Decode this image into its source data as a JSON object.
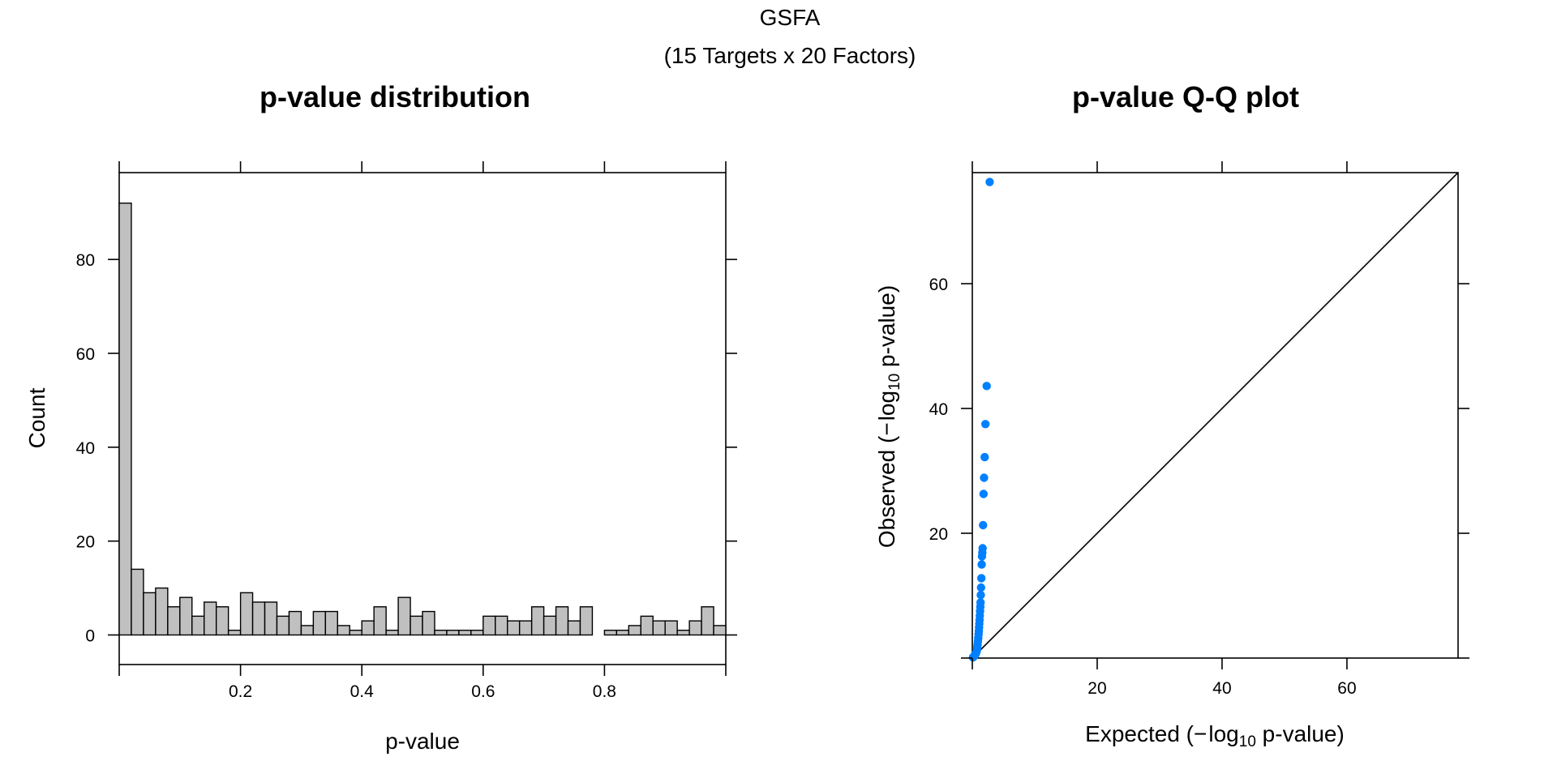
{
  "figure": {
    "title": "GSFA",
    "subtitle": "(15 Targets x 20 Factors)"
  },
  "chart_data": [
    {
      "type": "bar",
      "subtype": "histogram",
      "title": "p-value distribution",
      "xlabel": "p-value",
      "ylabel": "Count",
      "xlim": [
        0,
        1
      ],
      "ylim": [
        -6.3,
        98.5
      ],
      "bin_width": 0.02,
      "bin_starts": [
        0.0,
        0.02,
        0.04,
        0.06,
        0.08,
        0.1,
        0.12,
        0.14,
        0.16,
        0.18,
        0.2,
        0.22,
        0.24,
        0.26,
        0.28,
        0.3,
        0.32,
        0.34,
        0.36,
        0.38,
        0.4,
        0.42,
        0.44,
        0.46,
        0.48,
        0.5,
        0.52,
        0.54,
        0.56,
        0.58,
        0.6,
        0.62,
        0.64,
        0.66,
        0.68,
        0.7,
        0.72,
        0.74,
        0.76,
        0.78,
        0.8,
        0.82,
        0.84,
        0.86,
        0.88,
        0.9,
        0.92,
        0.94,
        0.96,
        0.98
      ],
      "values": [
        92,
        14,
        9,
        10,
        6,
        8,
        4,
        7,
        6,
        1,
        9,
        7,
        7,
        4,
        5,
        2,
        5,
        5,
        2,
        1,
        3,
        6,
        1,
        8,
        4,
        5,
        1,
        1,
        1,
        1,
        4,
        4,
        3,
        3,
        6,
        4,
        6,
        3,
        6,
        0,
        1,
        1,
        2,
        4,
        3,
        3,
        1,
        3,
        6,
        2
      ],
      "x_ticks": [
        "0.2",
        "0.4",
        "0.6",
        "0.8"
      ],
      "x_tick_values": [
        0.2,
        0.4,
        0.6,
        0.8
      ],
      "y_ticks": [
        "0",
        "20",
        "40",
        "60",
        "80"
      ],
      "y_tick_values": [
        0,
        20,
        40,
        60,
        80
      ],
      "color": "#c0c0c0"
    },
    {
      "type": "scatter",
      "subtype": "qq",
      "title": "p-value Q-Q plot",
      "xlabel_prefix": "Expected (",
      "xlabel_minus": "−",
      "xlabel_log": "log",
      "xlabel_base": "10",
      "xlabel_suffix": " p-value)",
      "ylabel_prefix": "Observed (",
      "ylabel_minus": "−",
      "ylabel_log": "log",
      "ylabel_base": "10",
      "ylabel_suffix": " p-value)",
      "xlim": [
        0,
        77.8
      ],
      "ylim": [
        0,
        77.8
      ],
      "x_ticks": [
        "20",
        "40",
        "60"
      ],
      "x_tick_values": [
        20,
        40,
        60
      ],
      "y_ticks": [
        "20",
        "40",
        "60"
      ],
      "y_tick_values": [
        20,
        40,
        60
      ],
      "reference_line": "y = x",
      "color": "#0080ff",
      "points": [
        [
          2.78,
          76.3
        ],
        [
          2.3,
          43.6
        ],
        [
          2.1,
          37.5
        ],
        [
          1.98,
          32.2
        ],
        [
          1.88,
          28.9
        ],
        [
          1.8,
          26.3
        ],
        [
          1.72,
          21.3
        ],
        [
          1.65,
          17.6
        ],
        [
          1.6,
          16.9
        ],
        [
          1.55,
          16.3
        ],
        [
          1.5,
          15.0
        ],
        [
          1.45,
          12.8
        ],
        [
          1.4,
          11.3
        ],
        [
          1.36,
          10.1
        ],
        [
          1.32,
          8.9
        ],
        [
          1.28,
          8.2
        ],
        [
          1.24,
          7.5
        ],
        [
          1.2,
          6.8
        ],
        [
          1.16,
          6.1
        ],
        [
          1.12,
          5.5
        ],
        [
          1.08,
          4.9
        ],
        [
          1.04,
          4.3
        ],
        [
          1.0,
          3.8
        ],
        [
          0.95,
          3.2
        ],
        [
          0.9,
          2.7
        ],
        [
          0.85,
          2.2
        ],
        [
          0.8,
          1.8
        ],
        [
          0.75,
          1.4
        ],
        [
          0.7,
          1.1
        ],
        [
          0.6,
          0.8
        ],
        [
          0.5,
          0.6
        ],
        [
          0.4,
          0.45
        ],
        [
          0.3,
          0.32
        ],
        [
          0.2,
          0.2
        ],
        [
          0.1,
          0.1
        ]
      ]
    }
  ]
}
